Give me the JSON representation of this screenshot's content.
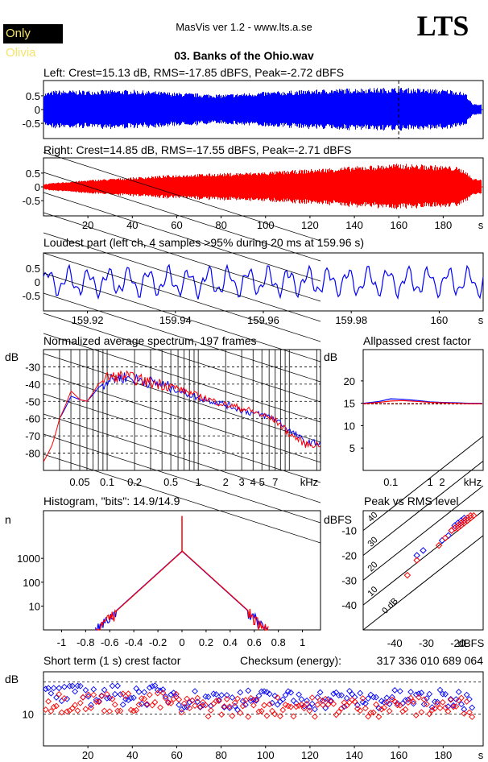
{
  "header": {
    "badge": "Only Olivia",
    "app": "MasVis ver 1.2 - www.lts.a.se",
    "logo": "LTS",
    "file": "03. Banks of the Ohio.wav"
  },
  "colors": {
    "left": "#0000ff",
    "right": "#ff0000",
    "line": "#000000",
    "badge_text": "#f4e46a"
  },
  "chart_data": [
    {
      "type": "line",
      "panel": "left-waveform",
      "title": "Left: Crest=15.13 dB, RMS=-17.85 dBFS, Peak=-2.72 dBFS",
      "series": [
        {
          "name": "Left",
          "color": "#0000ff"
        }
      ],
      "xlim": [
        0,
        198
      ],
      "ylim": [
        -1,
        1
      ],
      "y_ticks": [
        "0.5",
        "0",
        "-0.5"
      ],
      "x_ticks": [],
      "envelope_x": [
        0,
        5,
        20,
        40,
        60,
        80,
        100,
        120,
        140,
        160,
        175,
        185,
        190,
        193
      ],
      "envelope_amp": [
        0.6,
        0.7,
        0.7,
        0.72,
        0.62,
        0.55,
        0.65,
        0.72,
        0.78,
        0.8,
        0.75,
        0.72,
        0.6,
        0.2
      ],
      "marker_x": 159.96
    },
    {
      "type": "line",
      "panel": "right-waveform",
      "title": "Right: Crest=14.85 dB, RMS=-17.55 dBFS, Peak=-2.71 dBFS",
      "series": [
        {
          "name": "Right",
          "color": "#ff0000"
        }
      ],
      "xlim": [
        0,
        198
      ],
      "ylim": [
        -1,
        1
      ],
      "y_ticks": [
        "0.5",
        "0",
        "-0.5"
      ],
      "x_ticks": [
        "20",
        "40",
        "60",
        "80",
        "100",
        "120",
        "140",
        "160",
        "180",
        "s"
      ],
      "envelope_x": [
        0,
        5,
        20,
        40,
        60,
        80,
        100,
        120,
        140,
        160,
        175,
        185,
        190,
        193
      ],
      "envelope_amp": [
        0.1,
        0.15,
        0.25,
        0.35,
        0.45,
        0.5,
        0.55,
        0.65,
        0.75,
        0.85,
        0.8,
        0.75,
        0.6,
        0.3
      ]
    },
    {
      "type": "line",
      "panel": "loudest-part",
      "title": "Loudest part (left  ch, 4 samples >95% during 20 ms at 159.96 s)",
      "series": [
        {
          "name": "Left",
          "color": "#0000ff"
        }
      ],
      "xlim": [
        159.91,
        160.01
      ],
      "ylim": [
        -1,
        1
      ],
      "y_ticks": [
        "0.5",
        "0",
        "-0.5"
      ],
      "x_ticks": [
        "159.92",
        "159.94",
        "159.96",
        "159.98",
        "160",
        "s"
      ]
    },
    {
      "type": "line",
      "panel": "spectrum",
      "title": "Normalized average spectrum, 197 frames",
      "ylabel": "dB",
      "xlim": [
        0.02,
        22
      ],
      "ylim": [
        -90,
        -20
      ],
      "x_log": true,
      "y_ticks": [
        "-30",
        "-40",
        "-50",
        "-60",
        "-70",
        "-80"
      ],
      "x_ticks": [
        "0.05",
        "0.1",
        "0.2",
        "0.5",
        "1",
        "2",
        "3",
        "4",
        "5",
        "7",
        "kHz"
      ],
      "x_tick_values": [
        0.05,
        0.1,
        0.2,
        0.5,
        1,
        2,
        3,
        4,
        5,
        7
      ],
      "series": [
        {
          "name": "Left",
          "color": "#0000ff",
          "x": [
            0.03,
            0.04,
            0.05,
            0.06,
            0.08,
            0.1,
            0.12,
            0.15,
            0.2,
            0.3,
            0.5,
            0.7,
            1,
            1.5,
            2,
            3,
            4,
            5,
            7,
            10,
            15
          ],
          "y": [
            -60,
            -47,
            -49,
            -50,
            -42,
            -38,
            -37,
            -36,
            -37,
            -39,
            -42,
            -45,
            -48,
            -50,
            -52,
            -55,
            -57,
            -58,
            -60,
            -67,
            -74
          ]
        },
        {
          "name": "Right",
          "color": "#ff0000",
          "x": [
            0.02,
            0.025,
            0.03,
            0.04,
            0.05,
            0.06,
            0.08,
            0.1,
            0.12,
            0.15,
            0.2,
            0.3,
            0.5,
            0.7,
            1,
            1.5,
            2,
            3,
            4,
            5,
            7,
            10,
            15
          ],
          "y": [
            -85,
            -75,
            -60,
            -44,
            -49,
            -50,
            -40,
            -36,
            -36,
            -35,
            -37,
            -39,
            -41,
            -44,
            -47,
            -50,
            -52,
            -54,
            -56,
            -58,
            -61,
            -69,
            -75
          ]
        }
      ]
    },
    {
      "type": "line",
      "panel": "allpassed-crest",
      "title": "Allpassed crest factor",
      "ylabel": "dB",
      "xlim": [
        0.02,
        22
      ],
      "ylim": [
        0,
        27
      ],
      "x_log": true,
      "y_ticks": [
        "20",
        "15",
        "10",
        "5"
      ],
      "y_tick_values": [
        20,
        15,
        10,
        5
      ],
      "x_ticks": [
        "0.1",
        "1",
        "2",
        "kHz"
      ],
      "x_tick_values": [
        0.1,
        1,
        2
      ],
      "series": [
        {
          "name": "Left",
          "color": "#0000ff",
          "x": [
            0.02,
            0.05,
            0.1,
            0.2,
            0.5,
            1,
            2,
            5,
            10,
            20
          ],
          "y": [
            15.0,
            15.4,
            16.0,
            15.9,
            15.6,
            15.3,
            15.2,
            15.1,
            15.0,
            15.0
          ]
        },
        {
          "name": "Right",
          "color": "#ff0000",
          "x": [
            0.02,
            0.05,
            0.1,
            0.2,
            0.5,
            1,
            2,
            5,
            10,
            20
          ],
          "y": [
            14.9,
            15.2,
            15.5,
            15.6,
            15.4,
            15.2,
            15.1,
            15.0,
            14.9,
            14.9
          ]
        }
      ],
      "reference": 14.9
    },
    {
      "type": "line",
      "panel": "histogram",
      "title": "Histogram, \"bits\": 14.9/14.9",
      "ylabel": "n",
      "xlim": [
        -1.15,
        1.15
      ],
      "ylim": [
        0,
        5
      ],
      "y_log": true,
      "y_ticks": [
        "1000",
        "100",
        "10"
      ],
      "y_tick_values": [
        1000,
        100,
        10
      ],
      "x_ticks": [
        "-1",
        "-0.8",
        "-0.6",
        "-0.4",
        "-0.2",
        "0",
        "0.2",
        "0.4",
        "0.6",
        "0.8",
        "1"
      ],
      "x_tick_values": [
        -1,
        -0.8,
        -0.6,
        -0.4,
        -0.2,
        0,
        0.2,
        0.4,
        0.6,
        0.8,
        1
      ],
      "peak_count": 2000,
      "spike_count": 60000,
      "tail_extent": 0.72
    },
    {
      "type": "scatter",
      "panel": "peak-vs-rms",
      "title": "Peak vs RMS level",
      "xlabel": "dBFS",
      "ylabel": "dBFS",
      "xlim": [
        -50,
        -12
      ],
      "ylim": [
        -50,
        -2
      ],
      "x_ticks": [
        "-40",
        "-30",
        "-20",
        "dBFS"
      ],
      "x_tick_values": [
        -40,
        -30,
        -20
      ],
      "y_ticks": [
        "-10",
        "-20",
        "-30",
        "-40"
      ],
      "y_tick_values": [
        -10,
        -20,
        -30,
        -40
      ],
      "crest_lines": [
        "40",
        "30",
        "20",
        "10",
        "0 dB"
      ],
      "series": [
        {
          "name": "Left",
          "color": "#0000ff",
          "x": [
            -33,
            -31,
            -25,
            -23,
            -22,
            -21,
            -21,
            -20,
            -20,
            -19,
            -19,
            -18,
            -18,
            -17
          ],
          "y": [
            -20,
            -18,
            -14,
            -12,
            -10,
            -9,
            -8,
            -8,
            -7,
            -7,
            -6,
            -6,
            -5,
            -5
          ]
        },
        {
          "name": "Right",
          "color": "#ff0000",
          "x": [
            -36,
            -33,
            -26,
            -24,
            -22,
            -21,
            -20,
            -20,
            -19,
            -19,
            -18,
            -18,
            -17,
            -17,
            -16,
            -16,
            -15
          ],
          "y": [
            -28,
            -22,
            -16,
            -13,
            -10,
            -9,
            -9,
            -8,
            -8,
            -7,
            -7,
            -6,
            -6,
            -5,
            -5,
            -4,
            -4
          ]
        }
      ]
    },
    {
      "type": "scatter",
      "panel": "short-term-crest",
      "title": "Short term (1 s) crest factor",
      "checksum_label": "Checksum (energy):",
      "checksum_value": "317 336 010 689 064",
      "ylabel": "dB",
      "xlim": [
        0,
        198
      ],
      "ylim": [
        5,
        25
      ],
      "y_log": true,
      "y_ticks": [
        "10"
      ],
      "y_tick_values": [
        10
      ],
      "dashed_levels": [
        20,
        10
      ],
      "x_ticks": [
        "20",
        "40",
        "60",
        "80",
        "100",
        "120",
        "140",
        "160",
        "180",
        "s"
      ],
      "x_tick_values": [
        20,
        40,
        60,
        80,
        100,
        120,
        140,
        160,
        180
      ],
      "series": [
        {
          "name": "Left",
          "color": "#0000ff",
          "mean": 14
        },
        {
          "name": "Right",
          "color": "#ff0000",
          "mean": 12
        }
      ]
    }
  ]
}
